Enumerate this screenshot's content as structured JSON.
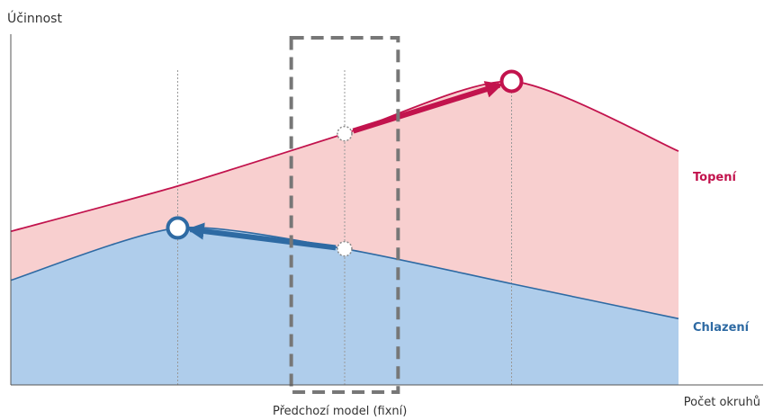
{
  "chart_data": {
    "type": "area",
    "ylabel": "Účinnost",
    "xlabel": "Počet okruhů",
    "annotation": "Předchozí model (fixní)",
    "grid": false,
    "legend": "inline-right",
    "x_range": [
      0,
      10
    ],
    "y_range": [
      0,
      10
    ],
    "x": [
      0,
      2.5,
      5,
      7.5,
      10
    ],
    "series": [
      {
        "name": "Topení",
        "color": "#c2134d",
        "fill": "#f8cfcf",
        "x": [
          0,
          2.5,
          5,
          7.5,
          10
        ],
        "values": [
          4.4,
          5.7,
          7.2,
          8.7,
          6.7
        ],
        "arrow": {
          "from_x": 5,
          "to_x": 7.5
        }
      },
      {
        "name": "Chlazení",
        "color": "#2e6aa3",
        "fill": "#afcdeb",
        "x": [
          0,
          2.5,
          5,
          7.5,
          10
        ],
        "values": [
          3.0,
          4.5,
          3.9,
          2.9,
          1.9
        ],
        "arrow": {
          "from_x": 5,
          "to_x": 2.5
        }
      }
    ],
    "guide_lines_x": [
      2.5,
      5,
      7.5
    ],
    "highlight_box_x": [
      4.2,
      5.8
    ]
  }
}
